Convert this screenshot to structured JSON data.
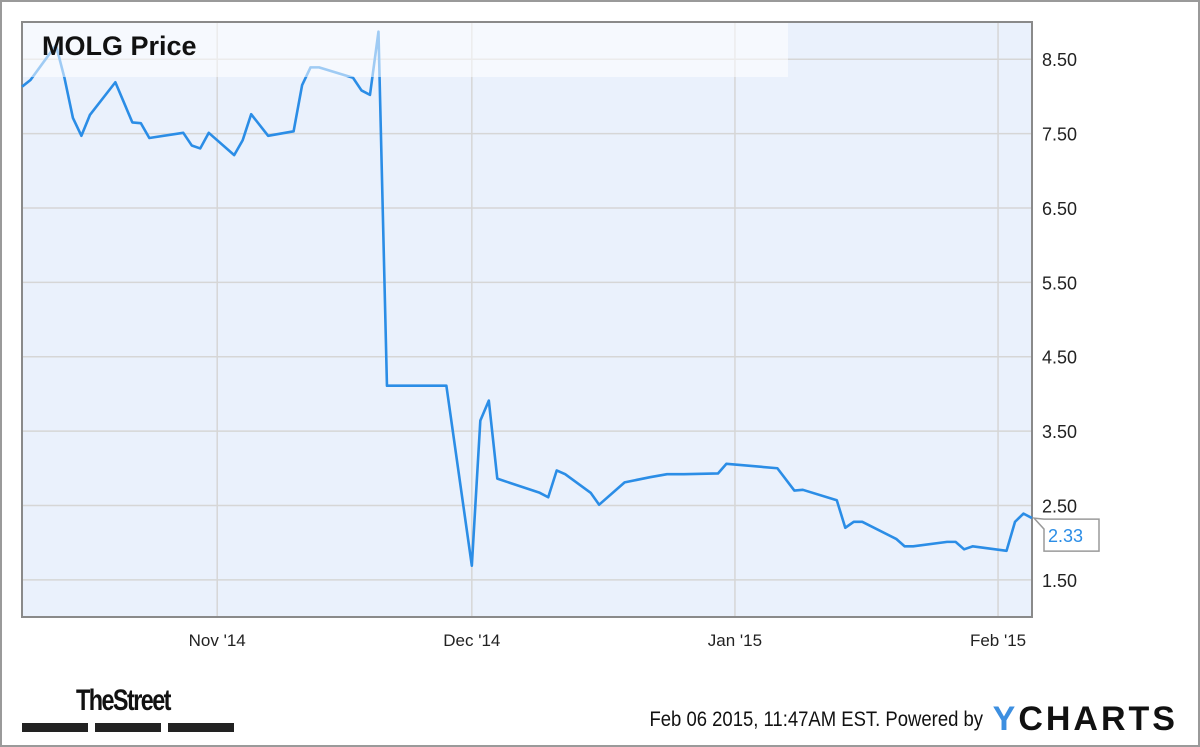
{
  "chart_data": {
    "type": "line",
    "title": "MOLG Price",
    "xlabel": "",
    "ylabel": "",
    "xlim": [
      "2014-10-09",
      "2015-02-05"
    ],
    "ylim": [
      1.0,
      9.0
    ],
    "grid": true,
    "y_axis_side": "right",
    "yticks": [
      "8.50",
      "7.50",
      "6.50",
      "5.50",
      "4.50",
      "3.50",
      "2.50",
      "1.50"
    ],
    "xticks": [
      {
        "date": "2014-11-01",
        "label": "Nov '14"
      },
      {
        "date": "2014-12-01",
        "label": "Dec '14"
      },
      {
        "date": "2015-01-01",
        "label": "Jan '15"
      },
      {
        "date": "2015-02-01",
        "label": "Feb '15"
      }
    ],
    "series": [
      {
        "color": "#2b8de6",
        "last_value_label": "2.33",
        "points": [
          [
            "2014-10-09",
            8.13
          ],
          [
            "2014-10-10",
            8.22
          ],
          [
            "2014-10-13",
            8.69
          ],
          [
            "2014-10-14",
            8.25
          ],
          [
            "2014-10-15",
            7.71
          ],
          [
            "2014-10-16",
            7.47
          ],
          [
            "2014-10-17",
            7.75
          ],
          [
            "2014-10-20",
            8.19
          ],
          [
            "2014-10-22",
            7.65
          ],
          [
            "2014-10-23",
            7.64
          ],
          [
            "2014-10-24",
            7.44
          ],
          [
            "2014-10-28",
            7.51
          ],
          [
            "2014-10-29",
            7.34
          ],
          [
            "2014-10-30",
            7.3
          ],
          [
            "2014-10-31",
            7.51
          ],
          [
            "2014-11-03",
            7.21
          ],
          [
            "2014-11-04",
            7.41
          ],
          [
            "2014-11-05",
            7.76
          ],
          [
            "2014-11-07",
            7.47
          ],
          [
            "2014-11-10",
            7.53
          ],
          [
            "2014-11-11",
            8.15
          ],
          [
            "2014-11-12",
            8.39
          ],
          [
            "2014-11-13",
            8.39
          ],
          [
            "2014-11-17",
            8.25
          ],
          [
            "2014-11-18",
            8.08
          ],
          [
            "2014-11-19",
            8.02
          ],
          [
            "2014-11-20",
            8.87
          ],
          [
            "2014-11-21",
            4.11
          ],
          [
            "2014-11-28",
            4.11
          ],
          [
            "2014-12-01",
            1.69
          ],
          [
            "2014-12-02",
            3.64
          ],
          [
            "2014-12-03",
            3.91
          ],
          [
            "2014-12-04",
            2.86
          ],
          [
            "2014-12-09",
            2.67
          ],
          [
            "2014-12-10",
            2.61
          ],
          [
            "2014-12-11",
            2.97
          ],
          [
            "2014-12-12",
            2.92
          ],
          [
            "2014-12-15",
            2.67
          ],
          [
            "2014-12-16",
            2.51
          ],
          [
            "2014-12-19",
            2.81
          ],
          [
            "2014-12-22",
            2.88
          ],
          [
            "2014-12-24",
            2.92
          ],
          [
            "2014-12-26",
            2.92
          ],
          [
            "2014-12-30",
            2.93
          ],
          [
            "2014-12-31",
            3.06
          ],
          [
            "2015-01-06",
            3.0
          ],
          [
            "2015-01-08",
            2.7
          ],
          [
            "2015-01-09",
            2.71
          ],
          [
            "2015-01-13",
            2.57
          ],
          [
            "2015-01-14",
            2.2
          ],
          [
            "2015-01-15",
            2.28
          ],
          [
            "2015-01-16",
            2.28
          ],
          [
            "2015-01-20",
            2.05
          ],
          [
            "2015-01-21",
            1.95
          ],
          [
            "2015-01-22",
            1.95
          ],
          [
            "2015-01-26",
            2.01
          ],
          [
            "2015-01-27",
            2.01
          ],
          [
            "2015-01-28",
            1.91
          ],
          [
            "2015-01-29",
            1.95
          ],
          [
            "2015-02-02",
            1.89
          ],
          [
            "2015-02-03",
            2.28
          ],
          [
            "2015-02-04",
            2.39
          ],
          [
            "2015-02-05",
            2.33
          ]
        ]
      }
    ]
  },
  "footer": {
    "brand_left": "TheStreet",
    "timestamp": "Feb 06 2015, 11:47AM EST.",
    "powered_by": "Powered by",
    "brand_right_y": "Y",
    "brand_right_rest": "CHARTS"
  },
  "colors": {
    "plot_bg": "#eaf1fc",
    "line": "#2b8de6",
    "grid": "#d6d6d6",
    "logo_accent": "#3d8fe0"
  }
}
